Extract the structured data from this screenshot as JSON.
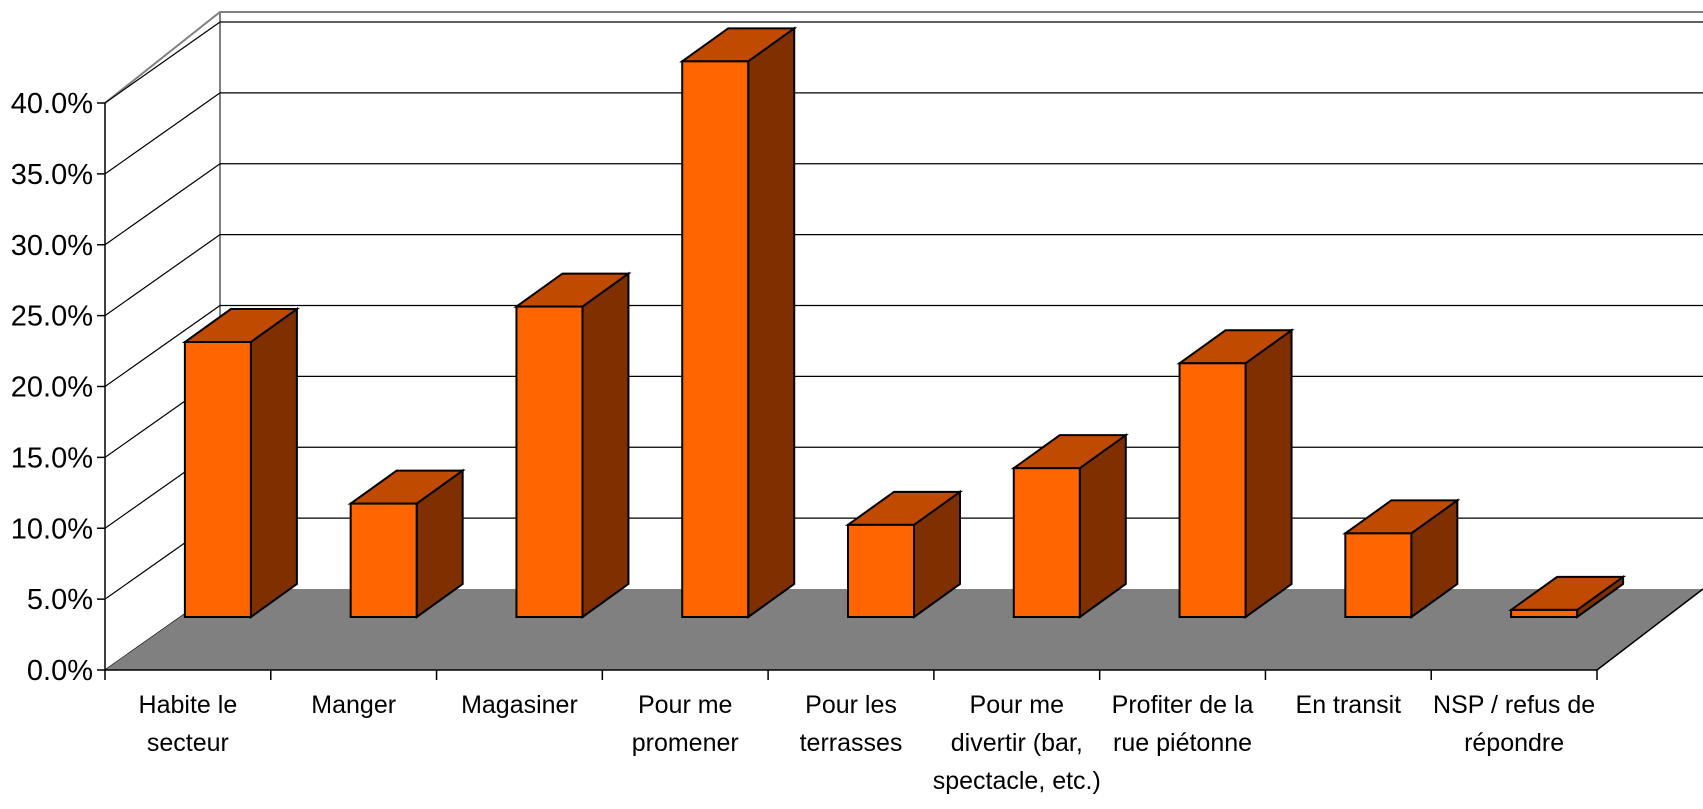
{
  "chart_data": {
    "type": "bar",
    "title": "",
    "xlabel": "",
    "ylabel": "",
    "ylim": [
      0,
      40
    ],
    "y_ticks": [
      "0.0%",
      "5.0%",
      "10.0%",
      "15.0%",
      "20.0%",
      "25.0%",
      "30.0%",
      "35.0%",
      "40.0%"
    ],
    "categories": [
      [
        "Habite le",
        "secteur"
      ],
      [
        "Manger"
      ],
      [
        "Magasiner"
      ],
      [
        "Pour me",
        "promener"
      ],
      [
        "Pour les",
        "terrasses"
      ],
      [
        "Pour me",
        "divertir (bar,",
        "spectacle, etc.)"
      ],
      [
        "Profiter de la",
        "rue piétonne"
      ],
      [
        "En transit"
      ],
      [
        "NSP / refus de",
        "répondre"
      ]
    ],
    "values": [
      19.4,
      8.0,
      21.9,
      39.2,
      6.5,
      10.5,
      17.9,
      5.9,
      0.5
    ],
    "grid": true,
    "legend": "none",
    "style": "3d-column",
    "colors": {
      "bar_front": "#ff6600",
      "bar_top": "#c04a00",
      "bar_side": "#803000",
      "floor": "#808080",
      "gridline": "#000000"
    }
  }
}
